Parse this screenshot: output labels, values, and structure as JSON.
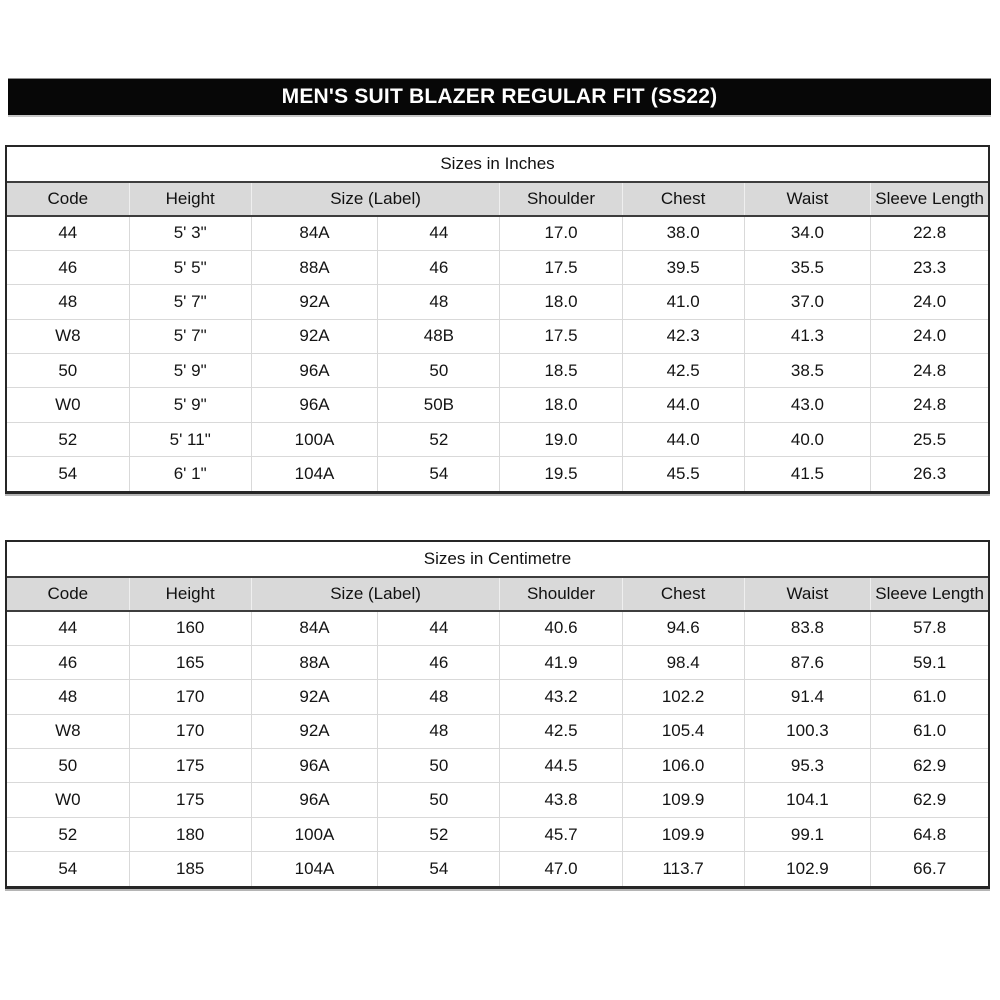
{
  "page": {
    "title": "MEN'S SUIT BLAZER REGULAR FIT (SS22)"
  },
  "colors": {
    "title_bar_bg": "#070707",
    "title_bar_text": "#ffffff",
    "header_row_bg": "#d9d9d9",
    "grid_line": "#d9d9d9",
    "heavy_line": "#3d3d3d",
    "outer_border": "#262626"
  },
  "columns": [
    "Code",
    "Height",
    "Size (Label)",
    "Shoulder",
    "Chest",
    "Waist",
    "Sleeve Length"
  ],
  "tables": [
    {
      "title": "Sizes in Inches",
      "rows": [
        [
          "44",
          "5' 3\"",
          "84A",
          "44",
          "17.0",
          "38.0",
          "34.0",
          "22.8"
        ],
        [
          "46",
          "5' 5\"",
          "88A",
          "46",
          "17.5",
          "39.5",
          "35.5",
          "23.3"
        ],
        [
          "48",
          "5' 7\"",
          "92A",
          "48",
          "18.0",
          "41.0",
          "37.0",
          "24.0"
        ],
        [
          "W8",
          "5' 7\"",
          "92A",
          "48B",
          "17.5",
          "42.3",
          "41.3",
          "24.0"
        ],
        [
          "50",
          "5' 9\"",
          "96A",
          "50",
          "18.5",
          "42.5",
          "38.5",
          "24.8"
        ],
        [
          "W0",
          "5' 9\"",
          "96A",
          "50B",
          "18.0",
          "44.0",
          "43.0",
          "24.8"
        ],
        [
          "52",
          "5' 11\"",
          "100A",
          "52",
          "19.0",
          "44.0",
          "40.0",
          "25.5"
        ],
        [
          "54",
          "6' 1\"",
          "104A",
          "54",
          "19.5",
          "45.5",
          "41.5",
          "26.3"
        ]
      ]
    },
    {
      "title": "Sizes in Centimetre",
      "rows": [
        [
          "44",
          "160",
          "84A",
          "44",
          "40.6",
          "94.6",
          "83.8",
          "57.8"
        ],
        [
          "46",
          "165",
          "88A",
          "46",
          "41.9",
          "98.4",
          "87.6",
          "59.1"
        ],
        [
          "48",
          "170",
          "92A",
          "48",
          "43.2",
          "102.2",
          "91.4",
          "61.0"
        ],
        [
          "W8",
          "170",
          "92A",
          "48",
          "42.5",
          "105.4",
          "100.3",
          "61.0"
        ],
        [
          "50",
          "175",
          "96A",
          "50",
          "44.5",
          "106.0",
          "95.3",
          "62.9"
        ],
        [
          "W0",
          "175",
          "96A",
          "50",
          "43.8",
          "109.9",
          "104.1",
          "62.9"
        ],
        [
          "52",
          "180",
          "100A",
          "52",
          "45.7",
          "109.9",
          "99.1",
          "64.8"
        ],
        [
          "54",
          "185",
          "104A",
          "54",
          "47.0",
          "113.7",
          "102.9",
          "66.7"
        ]
      ]
    }
  ]
}
